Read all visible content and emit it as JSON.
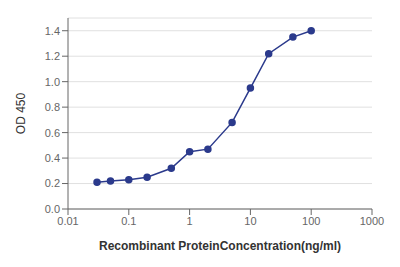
{
  "chart_data": {
    "type": "line",
    "x": [
      0.03,
      0.05,
      0.1,
      0.2,
      0.5,
      1.0,
      2.0,
      5.0,
      10.0,
      20.0,
      50.0,
      100.0
    ],
    "values": [
      0.21,
      0.22,
      0.23,
      0.25,
      0.32,
      0.45,
      0.47,
      0.68,
      0.95,
      1.22,
      1.35,
      1.4
    ],
    "color": "#2B3A8C",
    "marker": "circle",
    "xlabel": "Recombinant ProteinConcentration(ng/ml)",
    "ylabel": "OD 450",
    "log": "x",
    "xlim": [
      0.01,
      1000
    ],
    "xticks": [
      0.01,
      0.1,
      1,
      10,
      100,
      1000
    ],
    "ylim": [
      0,
      1.5
    ],
    "yticks": [
      {
        "value": 0,
        "label": "0.0"
      },
      0.2,
      0.4,
      0.6,
      0.8,
      {
        "value": 1.0,
        "label": "1.0"
      },
      1.2,
      1.4
    ],
    "grid": "y"
  }
}
